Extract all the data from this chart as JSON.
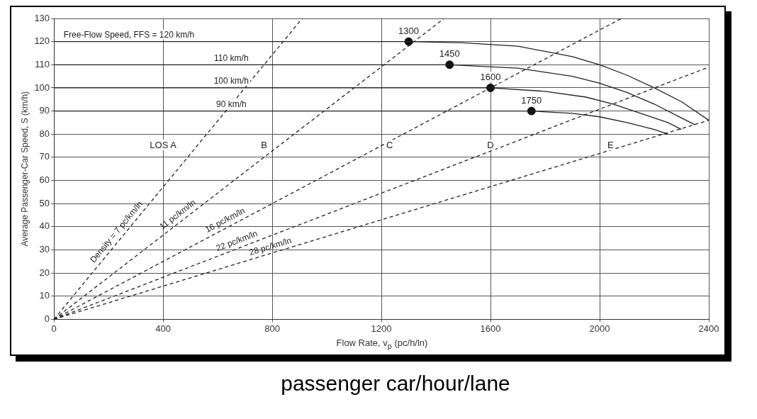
{
  "chart_data": {
    "type": "line",
    "xlabel": "Flow Rate, v$_{p}$ (pc/h/ln)",
    "ylabel": "Average Passenger-Car Speed, S (km/h)",
    "xlim": [
      0,
      2400
    ],
    "xticks": [
      0,
      400,
      800,
      1200,
      1600,
      2000,
      2400
    ],
    "ylim": [
      0,
      130
    ],
    "yticks": [
      0,
      10,
      20,
      30,
      40,
      50,
      60,
      70,
      80,
      90,
      100,
      110,
      120,
      130
    ],
    "grid": true,
    "legend": false,
    "series": [
      {
        "name": "Free-Flow Speed, FFS = 120 km/h",
        "type": "line",
        "color": "#222222",
        "line_style": "solid",
        "x": [
          0,
          1300,
          1500,
          1700,
          1900,
          2000,
          2100,
          2200,
          2300,
          2400
        ],
        "values": [
          120,
          120,
          119.5,
          118,
          113.5,
          110,
          105.5,
          100,
          94,
          86
        ]
      },
      {
        "name": "110 km/h",
        "type": "line",
        "color": "#222222",
        "line_style": "solid",
        "x": [
          0,
          1450,
          1700,
          1900,
          2000,
          2100,
          2200,
          2300,
          2350
        ],
        "values": [
          110,
          110,
          108.5,
          105,
          102,
          98,
          93,
          87,
          84
        ]
      },
      {
        "name": "100 km/h",
        "type": "line",
        "color": "#222222",
        "line_style": "solid",
        "x": [
          0,
          1600,
          1800,
          1950,
          2050,
          2150,
          2250,
          2300
        ],
        "values": [
          100,
          100,
          98.5,
          96,
          93,
          89,
          85,
          82
        ]
      },
      {
        "name": "90 km/h",
        "type": "line",
        "color": "#222222",
        "line_style": "solid",
        "x": [
          0,
          1750,
          1900,
          2000,
          2100,
          2200,
          2250
        ],
        "values": [
          90,
          90,
          89,
          87.5,
          85,
          82,
          80
        ]
      },
      {
        "name": "Density = 7 pc/km/ln",
        "type": "line",
        "color": "#222222",
        "line_style": "dashed",
        "x": [
          0,
          910
        ],
        "values": [
          0,
          130
        ]
      },
      {
        "name": "11 pc/km/ln",
        "type": "line",
        "color": "#222222",
        "line_style": "dashed",
        "x": [
          0,
          1430
        ],
        "values": [
          0,
          130
        ]
      },
      {
        "name": "16 pc/km/ln",
        "type": "line",
        "color": "#222222",
        "line_style": "dashed",
        "x": [
          0,
          2080
        ],
        "values": [
          0,
          130
        ]
      },
      {
        "name": "22 pc/km/ln",
        "type": "line",
        "color": "#222222",
        "line_style": "dashed",
        "x": [
          0,
          2400
        ],
        "values": [
          0,
          109
        ]
      },
      {
        "name": "28 pc/km/ln",
        "type": "line",
        "color": "#222222",
        "line_style": "dashed",
        "x": [
          0,
          2400
        ],
        "values": [
          0,
          86
        ]
      },
      {
        "type": "scatter",
        "color": "#111111",
        "marker": "circle",
        "x": [
          1300,
          1450,
          1600,
          1750
        ],
        "values": [
          120,
          110,
          100,
          90
        ]
      }
    ],
    "annotations": [
      {
        "text": "1300",
        "x": 1300,
        "y": 120
      },
      {
        "text": "1450",
        "x": 1450,
        "y": 110
      },
      {
        "text": "1600",
        "x": 1600,
        "y": 100
      },
      {
        "text": "1750",
        "x": 1750,
        "y": 90
      },
      "LOS A",
      "B",
      "C",
      "D",
      "E",
      "passenger car/hour/lane"
    ]
  }
}
